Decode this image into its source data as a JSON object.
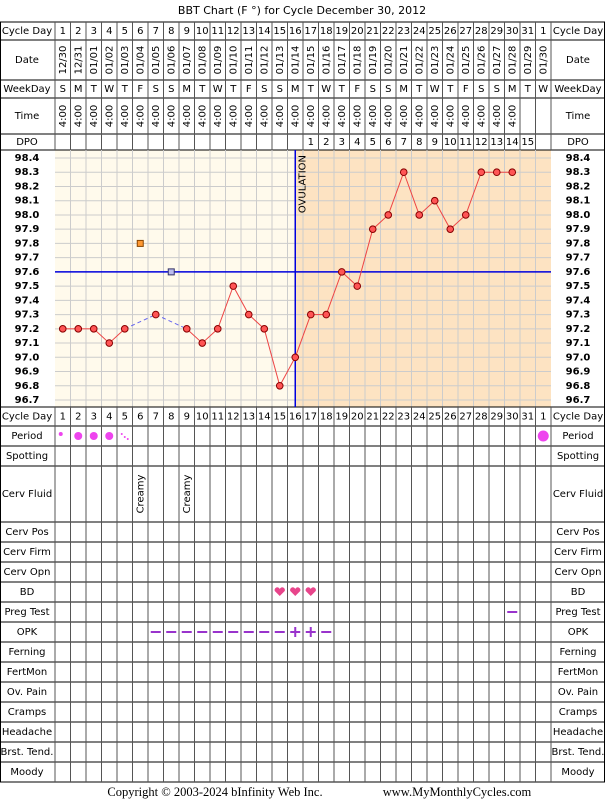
{
  "chart_data": {
    "type": "line",
    "title": "BBT Chart (F °) for Cycle December 30, 2012",
    "row_labels": {
      "cycle_day": "Cycle Day",
      "date": "Date",
      "weekday": "WeekDay",
      "time": "Time",
      "dpo": "DPO"
    },
    "cycle_days": [
      1,
      2,
      3,
      4,
      5,
      6,
      7,
      8,
      9,
      10,
      11,
      12,
      13,
      14,
      15,
      16,
      17,
      18,
      19,
      20,
      21,
      22,
      23,
      24,
      25,
      26,
      27,
      28,
      29,
      30,
      31,
      1
    ],
    "dates": [
      "12/30",
      "12/31",
      "01/01",
      "01/02",
      "01/03",
      "01/04",
      "01/05",
      "01/06",
      "01/07",
      "01/08",
      "01/09",
      "01/10",
      "01/11",
      "01/12",
      "01/13",
      "01/14",
      "01/15",
      "01/16",
      "01/17",
      "01/18",
      "01/19",
      "01/20",
      "01/21",
      "01/22",
      "01/23",
      "01/24",
      "01/25",
      "01/26",
      "01/27",
      "01/28",
      "01/29",
      "01/30"
    ],
    "weekdays": [
      "S",
      "M",
      "T",
      "W",
      "T",
      "F",
      "S",
      "S",
      "M",
      "T",
      "W",
      "T",
      "F",
      "S",
      "S",
      "M",
      "T",
      "W",
      "T",
      "F",
      "S",
      "S",
      "M",
      "T",
      "W",
      "T",
      "F",
      "S",
      "S",
      "M",
      "T",
      "W"
    ],
    "times": [
      "4:00",
      "4:00",
      "4:00",
      "4:00",
      "4:00",
      "4:00",
      "4:00",
      "4:00",
      "4:00",
      "4:00",
      "4:00",
      "4:00",
      "4:00",
      "4:00",
      "4:00",
      "4:00",
      "4:00",
      "4:00",
      "4:00",
      "4:00",
      "4:00",
      "4:00",
      "4:00",
      "4:00",
      "4:00",
      "4:00",
      "4:00",
      "4:00",
      "4:00",
      "4:00",
      null,
      null
    ],
    "dpo": [
      null,
      null,
      null,
      null,
      null,
      null,
      null,
      null,
      null,
      null,
      null,
      null,
      null,
      null,
      null,
      null,
      1,
      2,
      3,
      4,
      5,
      6,
      7,
      8,
      9,
      10,
      11,
      12,
      13,
      14,
      15,
      null
    ],
    "values": [
      97.2,
      97.2,
      97.2,
      97.1,
      97.2,
      null,
      97.3,
      null,
      97.2,
      97.1,
      97.2,
      97.5,
      97.3,
      97.2,
      96.8,
      97.0,
      97.3,
      97.3,
      97.6,
      97.5,
      97.9,
      98.0,
      98.3,
      98.0,
      98.1,
      97.9,
      98.0,
      98.3,
      98.3,
      98.3,
      null,
      null
    ],
    "color": "#ee4444",
    "discarded_values": [
      null,
      null,
      null,
      null,
      null,
      97.8,
      null,
      97.6,
      null,
      null,
      null,
      null,
      null,
      null,
      null,
      null,
      null,
      null,
      null,
      null,
      null,
      null,
      null,
      null,
      null,
      null,
      null,
      null,
      null,
      null,
      null,
      null
    ],
    "ylim": [
      96.7,
      98.4
    ],
    "yticks": [
      98.4,
      98.3,
      98.2,
      98.1,
      {
        "value": 98,
        "label": "98.0"
      },
      97.9,
      97.8,
      97.7,
      97.6,
      97.5,
      97.4,
      97.3,
      97.2,
      97.1,
      {
        "value": 97,
        "label": "97.0"
      },
      96.9,
      96.8,
      96.7
    ],
    "coverline": 97.6,
    "ovulation_day": 16,
    "ovulation_label": "OVULATION",
    "bottom_rows": [
      {
        "label": "Cycle Day"
      },
      {
        "label": "Period",
        "values": [
          "light",
          "medium",
          "medium",
          "medium",
          "spotting",
          null,
          null,
          null,
          null,
          null,
          null,
          null,
          null,
          null,
          null,
          null,
          null,
          null,
          null,
          null,
          null,
          null,
          null,
          null,
          null,
          null,
          null,
          null,
          null,
          null,
          null,
          "heavy"
        ]
      },
      {
        "label": "Spotting"
      },
      {
        "label": "Cerv Fluid",
        "values": [
          null,
          null,
          null,
          null,
          null,
          "Creamy",
          null,
          null,
          "Creamy",
          null,
          null,
          null,
          null,
          null,
          null,
          null,
          null,
          null,
          null,
          null,
          null,
          null,
          null,
          null,
          null,
          null,
          null,
          null,
          null,
          null,
          null,
          null
        ]
      },
      {
        "label": "Cerv Pos"
      },
      {
        "label": "Cerv Firm"
      },
      {
        "label": "Cerv Opn"
      },
      {
        "label": "BD",
        "values": [
          null,
          null,
          null,
          null,
          null,
          null,
          null,
          null,
          null,
          null,
          null,
          null,
          null,
          null,
          "yes",
          "yes",
          "yes",
          null,
          null,
          null,
          null,
          null,
          null,
          null,
          null,
          null,
          null,
          null,
          null,
          null,
          null,
          null
        ]
      },
      {
        "label": "Preg Test",
        "values": [
          null,
          null,
          null,
          null,
          null,
          null,
          null,
          null,
          null,
          null,
          null,
          null,
          null,
          null,
          null,
          null,
          null,
          null,
          null,
          null,
          null,
          null,
          null,
          null,
          null,
          null,
          null,
          null,
          null,
          "negative",
          null,
          null
        ]
      },
      {
        "label": "OPK",
        "values": [
          null,
          null,
          null,
          null,
          null,
          null,
          "negative",
          "negative",
          "negative",
          "negative",
          "negative",
          "negative",
          "negative",
          "negative",
          "negative",
          "positive",
          "positive",
          "negative",
          null,
          null,
          null,
          null,
          null,
          null,
          null,
          null,
          null,
          null,
          null,
          null,
          null,
          null
        ]
      },
      {
        "label": "Ferning"
      },
      {
        "label": "FertMon"
      },
      {
        "label": "Ov. Pain"
      },
      {
        "label": "Cramps"
      },
      {
        "label": "Headache"
      },
      {
        "label": "Brst. Tend."
      },
      {
        "label": "Moody"
      }
    ]
  },
  "footer": {
    "copyright": "Copyright © 2003-2024 bInfinity Web Inc.",
    "site": "www.MyMonthlyCycles.com"
  }
}
